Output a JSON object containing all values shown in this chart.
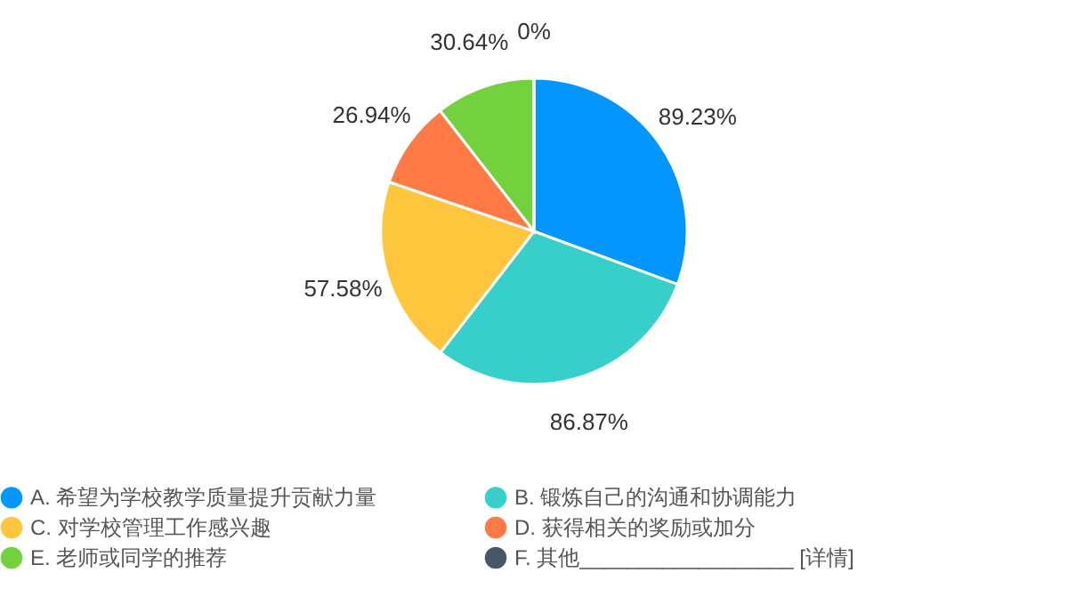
{
  "chart_data": {
    "type": "pie",
    "categories": [
      "A. 希望为学校教学质量提升贡献力量",
      "B. 锻炼自己的沟通和协调能力",
      "C. 对学校管理工作感兴趣",
      "D. 获得相关的奖励或加分",
      "E. 老师或同学的推荐",
      "F. 其他__________________ [详情]"
    ],
    "values": [
      89.23,
      86.87,
      57.58,
      26.94,
      30.64,
      0
    ],
    "value_labels": [
      "89.23%",
      "86.87%",
      "57.58%",
      "26.94%",
      "30.64%",
      "0%"
    ],
    "colors": [
      "#0496ff",
      "#36cfc9",
      "#ffc53d",
      "#ff7a45",
      "#73d13d",
      "#475669"
    ],
    "legend": "bottom"
  }
}
